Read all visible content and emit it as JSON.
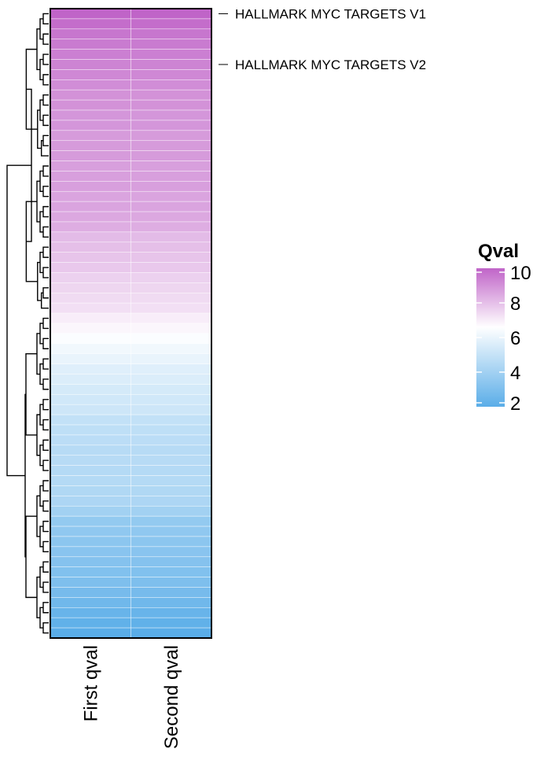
{
  "chart_data": {
    "type": "heatmap",
    "columns": [
      "First qval",
      "Second qval"
    ],
    "row_labels": [
      {
        "row": 0,
        "text": "HALLMARK MYC TARGETS V1"
      },
      {
        "row": 5,
        "text": "HALLMARK MYC TARGETS V2"
      }
    ],
    "values": [
      [
        10.0,
        10.0
      ],
      [
        9.8,
        9.8
      ],
      [
        9.6,
        9.6
      ],
      [
        9.5,
        9.5
      ],
      [
        9.4,
        9.4
      ],
      [
        9.3,
        9.3
      ],
      [
        9.2,
        9.2
      ],
      [
        9.1,
        9.1
      ],
      [
        9.0,
        9.0
      ],
      [
        9.0,
        9.0
      ],
      [
        8.9,
        8.9
      ],
      [
        8.9,
        8.9
      ],
      [
        8.8,
        8.8
      ],
      [
        8.8,
        8.8
      ],
      [
        8.8,
        8.8
      ],
      [
        8.7,
        8.7
      ],
      [
        8.7,
        8.7
      ],
      [
        8.7,
        8.7
      ],
      [
        8.6,
        8.6
      ],
      [
        8.6,
        8.6
      ],
      [
        8.5,
        8.5
      ],
      [
        8.4,
        8.4
      ],
      [
        8.1,
        8.1
      ],
      [
        8.0,
        8.0
      ],
      [
        7.9,
        7.9
      ],
      [
        7.8,
        7.8
      ],
      [
        7.6,
        7.6
      ],
      [
        7.5,
        7.5
      ],
      [
        7.4,
        7.4
      ],
      [
        7.3,
        7.3
      ],
      [
        7.0,
        7.0
      ],
      [
        6.8,
        6.8
      ],
      [
        6.5,
        6.5
      ],
      [
        6.2,
        6.2
      ],
      [
        6.0,
        6.0
      ],
      [
        5.7,
        5.7
      ],
      [
        5.6,
        5.6
      ],
      [
        5.4,
        5.4
      ],
      [
        5.3,
        5.3
      ],
      [
        5.2,
        5.2
      ],
      [
        4.9,
        4.9
      ],
      [
        4.8,
        4.8
      ],
      [
        4.7,
        4.7
      ],
      [
        4.6,
        4.6
      ],
      [
        4.6,
        4.6
      ],
      [
        4.5,
        4.5
      ],
      [
        4.5,
        4.5
      ],
      [
        4.4,
        4.4
      ],
      [
        4.3,
        4.3
      ],
      [
        4.0,
        4.0
      ],
      [
        3.6,
        3.6
      ],
      [
        3.5,
        3.5
      ],
      [
        3.4,
        3.4
      ],
      [
        3.3,
        3.3
      ],
      [
        3.2,
        3.2
      ],
      [
        3.1,
        3.1
      ],
      [
        3.0,
        3.0
      ],
      [
        2.8,
        2.8
      ],
      [
        2.6,
        2.6
      ],
      [
        2.4,
        2.4
      ],
      [
        2.2,
        2.2
      ],
      [
        2.0,
        2.0
      ]
    ],
    "legend": {
      "title": "Qval",
      "ticks": [
        10,
        8,
        6,
        4,
        2
      ],
      "range": [
        2,
        10
      ]
    },
    "color_scale": {
      "low": "#5aade8",
      "mid": "#ffffff",
      "high": "#c064c8",
      "midpoint": 6.6
    },
    "dendrogram": "row"
  }
}
